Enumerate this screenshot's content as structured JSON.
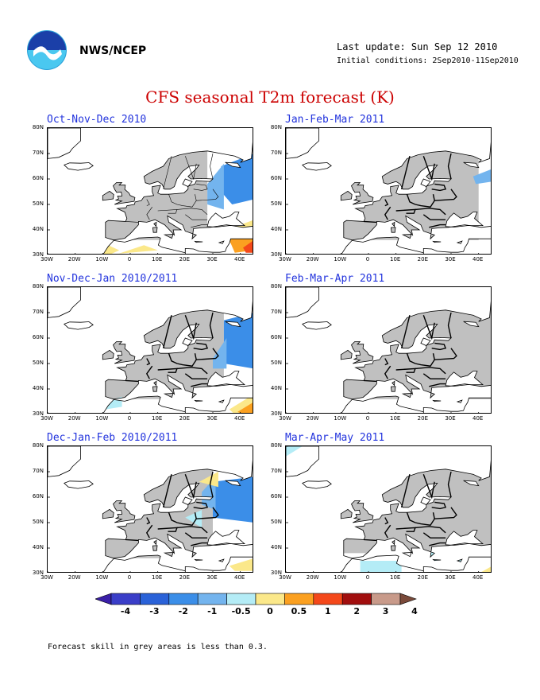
{
  "header": {
    "agency": "NWS/NCEP",
    "last_update": "Last update: Sun Sep 12 2010",
    "initial_conditions": "Initial conditions: 2Sep2010-11Sep2010"
  },
  "main_title": "CFS seasonal T2m forecast (K)",
  "panels": [
    {
      "title": "Oct-Nov-Dec 2010",
      "pattern": "oct"
    },
    {
      "title": "Jan-Feb-Mar 2011",
      "pattern": "jan"
    },
    {
      "title": "Nov-Dec-Jan 2010/2011",
      "pattern": "nov"
    },
    {
      "title": "Feb-Mar-Apr 2011",
      "pattern": "feb"
    },
    {
      "title": "Dec-Jan-Feb 2010/2011",
      "pattern": "dec"
    },
    {
      "title": "Mar-Apr-May 2011",
      "pattern": "mar"
    }
  ],
  "axes": {
    "lat_labels": [
      "80N",
      "70N",
      "60N",
      "50N",
      "40N",
      "30N"
    ],
    "lon_labels": [
      "30W",
      "20W",
      "10W",
      "0",
      "10E",
      "20E",
      "30E",
      "40E"
    ]
  },
  "colorbar": {
    "labels": [
      "-4",
      "-3",
      "-2",
      "-1",
      "-0.5",
      "0",
      "0.5",
      "1",
      "2",
      "3",
      "4"
    ],
    "colors": [
      "#3a1fa8",
      "#3a3ec8",
      "#2a62d8",
      "#3b8ee8",
      "#73b4ee",
      "#b4ecf6",
      "#fbe88a",
      "#fba020",
      "#f4481a",
      "#a10e0e",
      "#c89a8a",
      "#7a4a3a"
    ],
    "grey_color": "#c0c0c0"
  },
  "footnote": "Forecast skill in grey areas is less than 0.3."
}
